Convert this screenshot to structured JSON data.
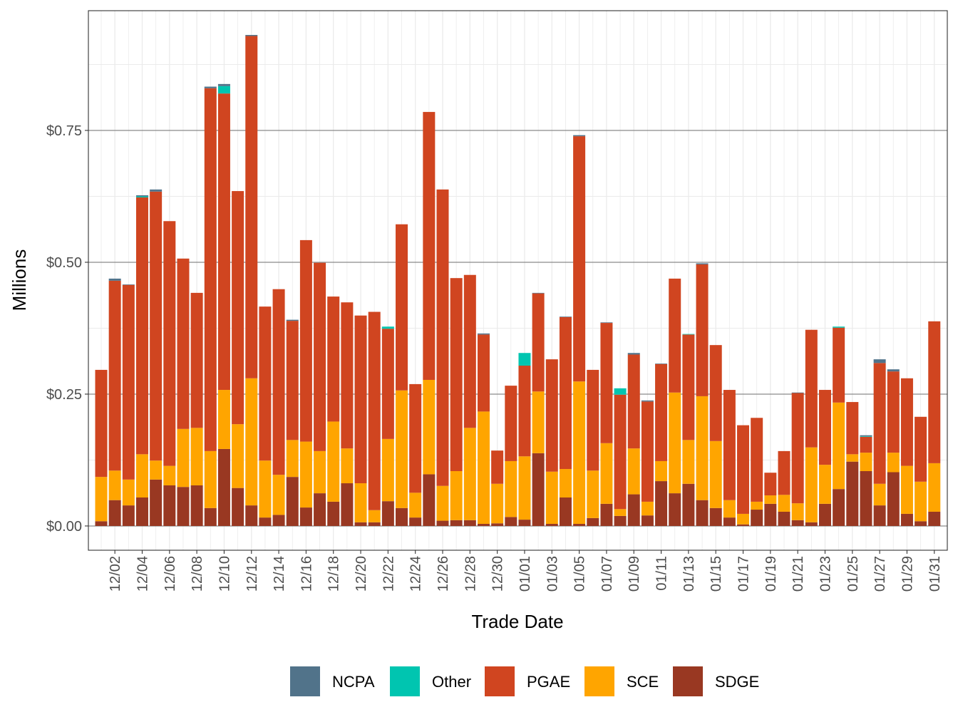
{
  "chart_data": {
    "type": "bar",
    "stacked": true,
    "title": "",
    "xlabel": "Trade Date",
    "ylabel": "Millions",
    "ylim": [
      -0.046,
      0.977
    ],
    "y_ticks": [
      0,
      0.25,
      0.5,
      0.75
    ],
    "y_tick_labels": [
      "$0.00",
      "$0.25",
      "$0.50",
      "$0.75"
    ],
    "grid": true,
    "legend_position": "bottom",
    "categories": [
      "12/01",
      "12/02",
      "12/03",
      "12/04",
      "12/05",
      "12/06",
      "12/07",
      "12/08",
      "12/09",
      "12/10",
      "12/11",
      "12/12",
      "12/13",
      "12/14",
      "12/15",
      "12/16",
      "12/17",
      "12/18",
      "12/19",
      "12/20",
      "12/21",
      "12/22",
      "12/23",
      "12/24",
      "12/25",
      "12/26",
      "12/27",
      "12/28",
      "12/29",
      "12/30",
      "12/31",
      "01/01",
      "01/02",
      "01/03",
      "01/04",
      "01/05",
      "01/06",
      "01/07",
      "01/08",
      "01/09",
      "01/10",
      "01/11",
      "01/12",
      "01/13",
      "01/14",
      "01/15",
      "01/16",
      "01/17",
      "01/18",
      "01/19",
      "01/20",
      "01/21",
      "01/22",
      "01/23",
      "01/24",
      "01/25",
      "01/26",
      "01/27",
      "01/28",
      "01/29",
      "01/30",
      "01/31"
    ],
    "x_tick_labels": [
      "12/02",
      "12/04",
      "12/06",
      "12/08",
      "12/10",
      "12/12",
      "12/14",
      "12/16",
      "12/18",
      "12/20",
      "12/22",
      "12/24",
      "12/26",
      "12/28",
      "12/30",
      "01/01",
      "01/03",
      "01/05",
      "01/07",
      "01/09",
      "01/11",
      "01/13",
      "01/15",
      "01/17",
      "01/19",
      "01/21",
      "01/23",
      "01/25",
      "01/27",
      "01/29",
      "01/31"
    ],
    "series": [
      {
        "name": "SDGE",
        "color": "#993822",
        "values": [
          0.009,
          0.049,
          0.039,
          0.054,
          0.088,
          0.077,
          0.074,
          0.077,
          0.034,
          0.146,
          0.072,
          0.039,
          0.016,
          0.021,
          0.093,
          0.035,
          0.062,
          0.046,
          0.081,
          0.007,
          0.007,
          0.047,
          0.034,
          0.016,
          0.098,
          0.01,
          0.011,
          0.011,
          0.004,
          0.005,
          0.017,
          0.012,
          0.138,
          0.004,
          0.054,
          0.004,
          0.015,
          0.042,
          0.019,
          0.06,
          0.02,
          0.085,
          0.062,
          0.08,
          0.049,
          0.034,
          0.016,
          0.003,
          0.031,
          0.042,
          0.027,
          0.011,
          0.007,
          0.042,
          0.07,
          0.122,
          0.104,
          0.039,
          0.102,
          0.023,
          0.009,
          0.027
        ]
      },
      {
        "name": "SCE",
        "color": "#FFA500",
        "values": [
          0.084,
          0.056,
          0.049,
          0.082,
          0.036,
          0.037,
          0.11,
          0.109,
          0.108,
          0.112,
          0.121,
          0.241,
          0.108,
          0.076,
          0.07,
          0.125,
          0.08,
          0.152,
          0.066,
          0.074,
          0.023,
          0.118,
          0.223,
          0.047,
          0.179,
          0.066,
          0.093,
          0.175,
          0.213,
          0.075,
          0.106,
          0.12,
          0.117,
          0.099,
          0.054,
          0.27,
          0.09,
          0.115,
          0.013,
          0.087,
          0.026,
          0.038,
          0.191,
          0.083,
          0.197,
          0.127,
          0.033,
          0.02,
          0.015,
          0.016,
          0.032,
          0.032,
          0.142,
          0.074,
          0.164,
          0.014,
          0.035,
          0.041,
          0.037,
          0.091,
          0.075,
          0.092
        ]
      },
      {
        "name": "PGAE",
        "color": "#D04520",
        "values": [
          0.203,
          0.36,
          0.369,
          0.487,
          0.51,
          0.464,
          0.323,
          0.256,
          0.688,
          0.562,
          0.442,
          0.649,
          0.292,
          0.352,
          0.226,
          0.382,
          0.357,
          0.237,
          0.277,
          0.318,
          0.376,
          0.209,
          0.315,
          0.206,
          0.508,
          0.562,
          0.366,
          0.29,
          0.146,
          0.063,
          0.143,
          0.172,
          0.186,
          0.213,
          0.288,
          0.465,
          0.191,
          0.228,
          0.217,
          0.178,
          0.19,
          0.184,
          0.216,
          0.2,
          0.25,
          0.182,
          0.209,
          0.168,
          0.159,
          0.043,
          0.083,
          0.209,
          0.223,
          0.142,
          0.142,
          0.099,
          0.03,
          0.229,
          0.154,
          0.166,
          0.123,
          0.269
        ]
      },
      {
        "name": "Other",
        "color": "#00C5B0",
        "values": [
          0,
          0,
          0,
          0.002,
          0,
          0,
          0,
          0,
          0,
          0.014,
          0,
          0,
          0,
          0,
          0,
          0,
          0,
          0,
          0,
          0,
          0,
          0.004,
          0,
          0,
          0,
          0,
          0,
          0,
          0,
          0,
          0,
          0.024,
          0,
          0,
          0,
          0,
          0,
          0,
          0.012,
          0,
          0,
          0,
          0,
          0.001,
          0,
          0,
          0,
          0,
          0,
          0,
          0,
          0,
          0,
          0,
          0.002,
          0,
          0.001,
          0,
          0,
          0,
          0,
          0
        ]
      },
      {
        "name": "NCPA",
        "color": "#51738A",
        "values": [
          0,
          0.004,
          0.001,
          0.002,
          0.004,
          0,
          0,
          0,
          0.003,
          0.004,
          0,
          0.002,
          0,
          0,
          0.002,
          0,
          0,
          0,
          0,
          0,
          0,
          0,
          0,
          0,
          0,
          0,
          0,
          0,
          0.002,
          0,
          0,
          0,
          0.001,
          0,
          0.001,
          0.002,
          0,
          0.001,
          0,
          0.003,
          0.002,
          0.001,
          0,
          0,
          0.002,
          0,
          0,
          0,
          0,
          0,
          0,
          0.001,
          0,
          0,
          0,
          0,
          0.002,
          0.007,
          0.004,
          0,
          0,
          0
        ]
      }
    ],
    "legend_order": [
      "NCPA",
      "Other",
      "PGAE",
      "SCE",
      "SDGE"
    ]
  }
}
